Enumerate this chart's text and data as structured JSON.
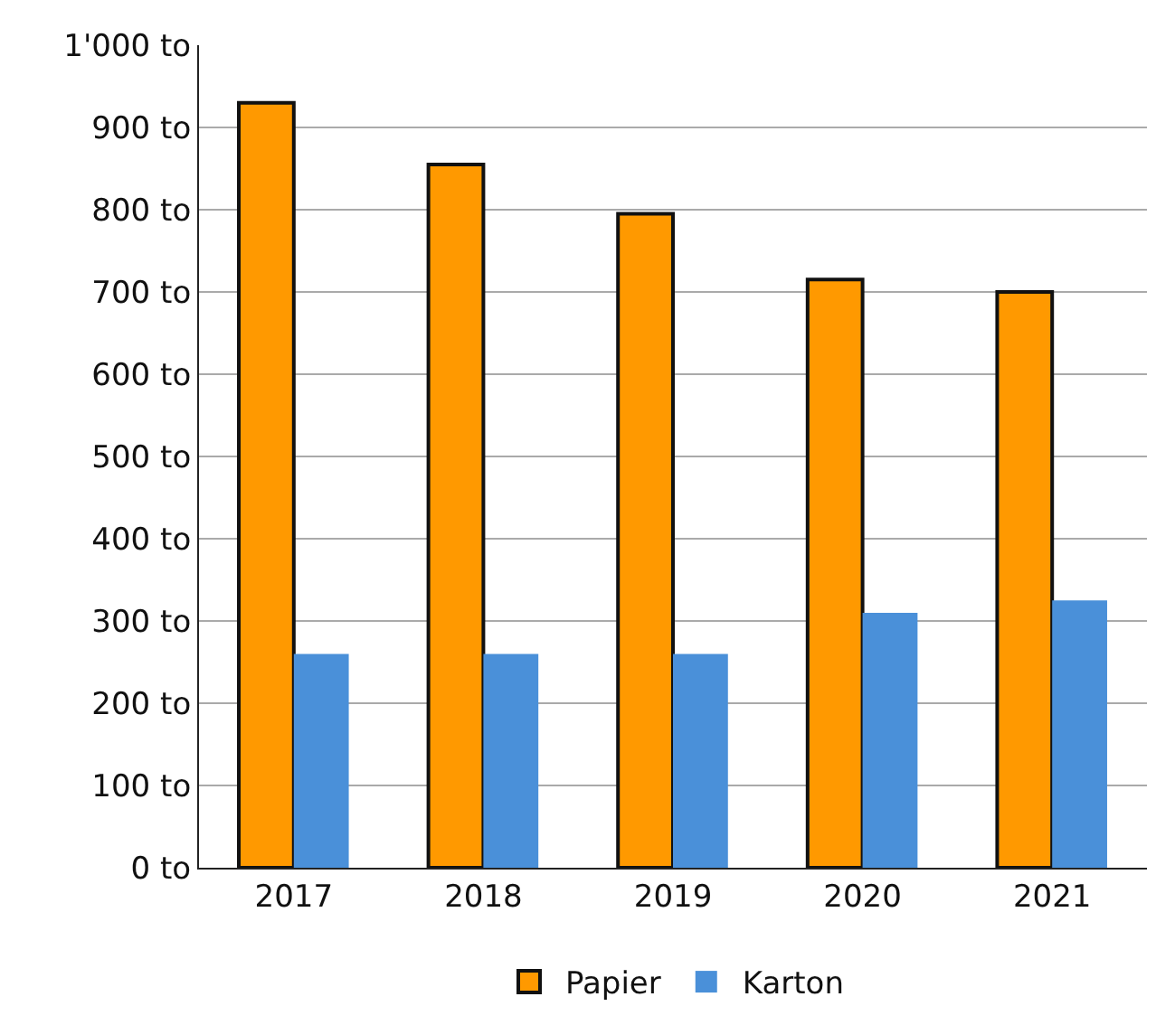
{
  "chart_data": {
    "type": "bar",
    "categories": [
      "2017",
      "2018",
      "2019",
      "2020",
      "2021"
    ],
    "series": [
      {
        "name": "Papier",
        "color": "#ff9900",
        "values": [
          930,
          855,
          795,
          715,
          700
        ]
      },
      {
        "name": "Karton",
        "color": "#4a90d9",
        "values": [
          260,
          260,
          260,
          310,
          325
        ]
      }
    ],
    "ylim": [
      0,
      1000
    ],
    "yticks": [
      {
        "value": 0,
        "label": "0 to"
      },
      {
        "value": 100,
        "label": "100 to"
      },
      {
        "value": 200,
        "label": "200 to"
      },
      {
        "value": 300,
        "label": "300 to"
      },
      {
        "value": 400,
        "label": "400 to"
      },
      {
        "value": 500,
        "label": "500 to"
      },
      {
        "value": 600,
        "label": "600 to"
      },
      {
        "value": 700,
        "label": "700 to"
      },
      {
        "value": 800,
        "label": "800 to"
      },
      {
        "value": 900,
        "label": "900 to"
      },
      {
        "value": 1000,
        "label": "1'000 to"
      }
    ],
    "grid": "y",
    "legend": "bottom"
  }
}
